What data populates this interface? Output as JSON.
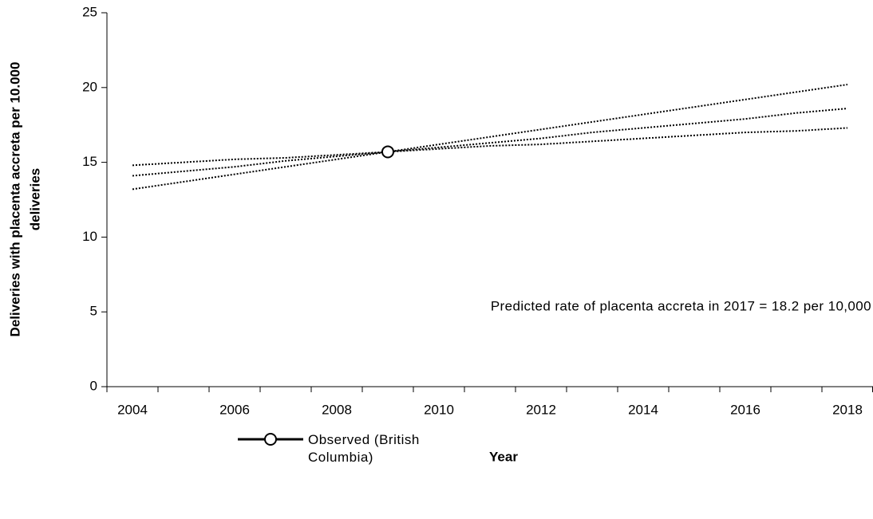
{
  "chart_data": {
    "type": "line",
    "ylabel": [
      "Deliveries with placenta accreta per 10.000",
      "deliveries"
    ],
    "xlabel": "Year",
    "annotation": "Predicted rate of placenta accreta in 2017 = 18.2 per 10,000",
    "categories": [
      "2004",
      null,
      "2006",
      null,
      "2008",
      null,
      "2010",
      null,
      "2012",
      null,
      "2014",
      null,
      "2016",
      null,
      "2018"
    ],
    "series": [
      {
        "color": "#000000",
        "style": "dotted",
        "values": [
          14.8,
          15.0,
          15.2,
          15.3,
          15.5,
          15.7,
          15.9,
          16.1,
          16.2,
          16.4,
          16.6,
          16.8,
          17.0,
          17.1,
          17.3
        ]
      },
      {
        "color": "#000000",
        "style": "dotted",
        "values": [
          14.1,
          14.4,
          14.7,
          15.1,
          15.4,
          15.7,
          16.0,
          16.3,
          16.6,
          17.0,
          17.3,
          17.6,
          17.9,
          18.3,
          18.6
        ]
      },
      {
        "color": "#000000",
        "style": "dotted",
        "values": [
          13.2,
          13.7,
          14.2,
          14.7,
          15.2,
          15.7,
          16.2,
          16.7,
          17.2,
          17.7,
          18.2,
          18.7,
          19.2,
          19.7,
          20.2
        ]
      },
      {
        "name": "Observed (British Columbia)",
        "color": "#000000",
        "style": "solid",
        "marker": "circle",
        "values": [
          null,
          null,
          null,
          null,
          null,
          15.7,
          null,
          null,
          null,
          null,
          null,
          null,
          null,
          null,
          null
        ]
      }
    ],
    "ylim": [
      0,
      25
    ],
    "yticks": [
      0,
      5,
      10,
      15,
      20,
      25
    ],
    "grid": false,
    "legend": "bottom"
  }
}
